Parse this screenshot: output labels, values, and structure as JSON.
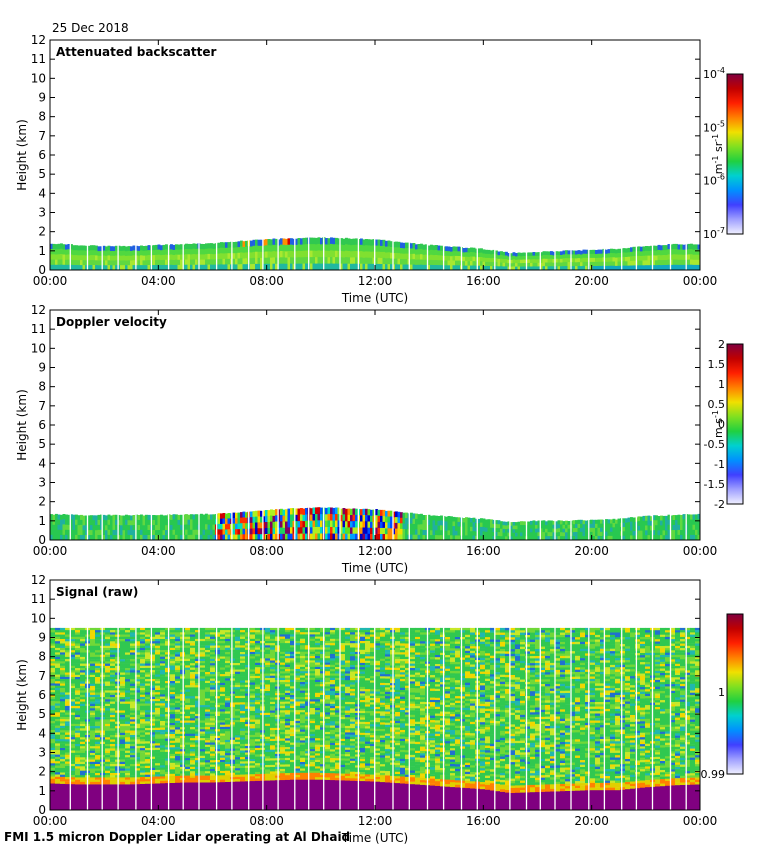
{
  "date_label": "25 Dec 2018",
  "footer": "FMI 1.5 micron Doppler Lidar operating at Al Dhaid",
  "colors": {
    "purple": "#800080",
    "white_gap": "#ffffff"
  },
  "chart_data": [
    {
      "type": "heatmap",
      "title": "Attenuated backscatter",
      "xlabel": "Time (UTC)",
      "ylabel": "Height (km)",
      "x_ticks": [
        "00:00",
        "04:00",
        "08:00",
        "12:00",
        "16:00",
        "20:00",
        "00:00"
      ],
      "y_ticks": [
        "0",
        "1",
        "2",
        "3",
        "4",
        "5",
        "6",
        "7",
        "8",
        "9",
        "10",
        "11",
        "12"
      ],
      "xlim": [
        0,
        24
      ],
      "ylim": [
        0,
        12
      ],
      "colorbar": {
        "unit_parts": [
          "m",
          "-1",
          " sr",
          "-1"
        ],
        "labels": [
          {
            "base": "10",
            "exp": "-4"
          },
          {
            "base": "10",
            "exp": "-5"
          },
          {
            "base": "10",
            "exp": "-6"
          },
          {
            "base": "10",
            "exp": "-7"
          }
        ]
      },
      "layer_top_km": [
        [
          0,
          1.4
        ],
        [
          1,
          1.3
        ],
        [
          2,
          1.25
        ],
        [
          3,
          1.25
        ],
        [
          4,
          1.3
        ],
        [
          5,
          1.35
        ],
        [
          6,
          1.4
        ],
        [
          7,
          1.5
        ],
        [
          8,
          1.6
        ],
        [
          9,
          1.65
        ],
        [
          10,
          1.7
        ],
        [
          11,
          1.65
        ],
        [
          12,
          1.6
        ],
        [
          13,
          1.45
        ],
        [
          14,
          1.3
        ],
        [
          15,
          1.2
        ],
        [
          16,
          1.1
        ],
        [
          17,
          0.9
        ],
        [
          18,
          0.95
        ],
        [
          19,
          1.0
        ],
        [
          20,
          1.05
        ],
        [
          21,
          1.1
        ],
        [
          22,
          1.25
        ],
        [
          23,
          1.35
        ],
        [
          24,
          1.35
        ]
      ]
    },
    {
      "type": "heatmap",
      "title": "Doppler velocity",
      "xlabel": "Time (UTC)",
      "ylabel": "Height (km)",
      "x_ticks": [
        "00:00",
        "04:00",
        "08:00",
        "12:00",
        "16:00",
        "20:00",
        "00:00"
      ],
      "y_ticks": [
        "0",
        "1",
        "2",
        "3",
        "4",
        "5",
        "6",
        "7",
        "8",
        "9",
        "10",
        "11",
        "12"
      ],
      "xlim": [
        0,
        24
      ],
      "ylim": [
        0,
        12
      ],
      "colorbar": {
        "unit_parts": [
          "m s",
          "-1"
        ],
        "labels": [
          "2",
          "1.5",
          "1",
          "0.5",
          "0",
          "-0.5",
          "-1",
          "-1.5",
          "-2"
        ]
      },
      "layer_top_km": [
        [
          0,
          1.35
        ],
        [
          1,
          1.3
        ],
        [
          2,
          1.3
        ],
        [
          3,
          1.3
        ],
        [
          4,
          1.3
        ],
        [
          5,
          1.35
        ],
        [
          6,
          1.35
        ],
        [
          7,
          1.45
        ],
        [
          8,
          1.55
        ],
        [
          9,
          1.65
        ],
        [
          10,
          1.7
        ],
        [
          11,
          1.65
        ],
        [
          12,
          1.6
        ],
        [
          13,
          1.45
        ],
        [
          14,
          1.3
        ],
        [
          15,
          1.2
        ],
        [
          16,
          1.1
        ],
        [
          17,
          0.95
        ],
        [
          18,
          1.0
        ],
        [
          19,
          1.0
        ],
        [
          20,
          1.05
        ],
        [
          21,
          1.1
        ],
        [
          22,
          1.25
        ],
        [
          23,
          1.3
        ],
        [
          24,
          1.35
        ]
      ],
      "turbulent_window_utc": [
        6,
        13
      ]
    },
    {
      "type": "heatmap",
      "title": "Signal (raw)",
      "xlabel": "Time (UTC)",
      "ylabel": "Height (km)",
      "x_ticks": [
        "00:00",
        "04:00",
        "08:00",
        "12:00",
        "16:00",
        "20:00",
        "00:00"
      ],
      "y_ticks": [
        "0",
        "1",
        "2",
        "3",
        "4",
        "5",
        "6",
        "7",
        "8",
        "9",
        "10",
        "11",
        "12"
      ],
      "xlim": [
        0,
        24
      ],
      "ylim": [
        0,
        12
      ],
      "colorbar": {
        "unit_parts": [],
        "labels": [
          "1",
          "0.99"
        ]
      },
      "data_top_km": 9.5,
      "strong_signal_top_km": [
        [
          0,
          1.4
        ],
        [
          1,
          1.35
        ],
        [
          2,
          1.35
        ],
        [
          3,
          1.35
        ],
        [
          4,
          1.4
        ],
        [
          5,
          1.45
        ],
        [
          6,
          1.45
        ],
        [
          7,
          1.5
        ],
        [
          8,
          1.55
        ],
        [
          9,
          1.6
        ],
        [
          10,
          1.6
        ],
        [
          11,
          1.55
        ],
        [
          12,
          1.5
        ],
        [
          13,
          1.4
        ],
        [
          14,
          1.3
        ],
        [
          15,
          1.2
        ],
        [
          16,
          1.1
        ],
        [
          17,
          0.9
        ],
        [
          18,
          0.95
        ],
        [
          19,
          1.0
        ],
        [
          20,
          1.05
        ],
        [
          21,
          1.05
        ],
        [
          22,
          1.2
        ],
        [
          23,
          1.3
        ],
        [
          24,
          1.35
        ]
      ]
    }
  ]
}
